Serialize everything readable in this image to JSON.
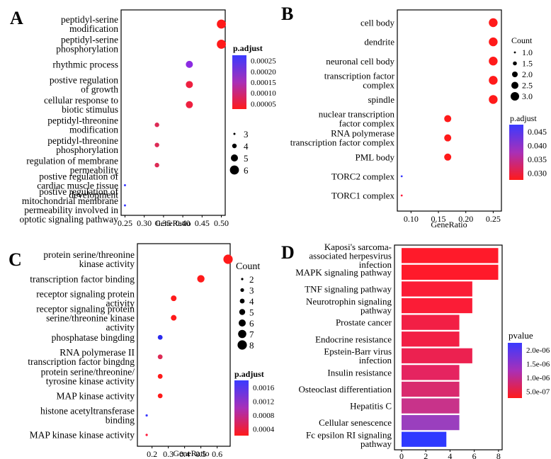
{
  "chart_data": [
    {
      "panel": "A",
      "type": "scatter",
      "xlabel": "GeneRatio",
      "xticks": [
        0.25,
        0.3,
        0.35,
        0.4,
        0.45,
        0.5
      ],
      "xtick_labels": [
        "0.25",
        "0.30",
        "0.35",
        "0.40",
        "0.45",
        "0.50"
      ],
      "xlim": [
        0.24,
        0.51
      ],
      "categories": [
        [
          "peptidyl-serine",
          "modification"
        ],
        [
          "peptidyl-serine",
          "phosphorylation"
        ],
        [
          "rhythmic process"
        ],
        [
          "postive regulation",
          "of growth"
        ],
        [
          "cellular response to",
          "biotic stimulus"
        ],
        [
          "peptidyl-threonine",
          "modification"
        ],
        [
          "peptidyl-threonine",
          "phosphorylation"
        ],
        [
          "regulation of membrane",
          "permeability"
        ],
        [
          "postive regulation of",
          "cardiac muscle tissue",
          "development"
        ],
        [
          "postive regulation of",
          "mitochondrial membrane",
          "permeability involved in",
          "optotic signaling pathway"
        ]
      ],
      "x": [
        0.5,
        0.5,
        0.417,
        0.417,
        0.417,
        0.333,
        0.333,
        0.333,
        0.25,
        0.25
      ],
      "size": [
        6,
        6,
        5,
        5,
        5,
        4,
        4,
        4,
        3,
        3
      ],
      "color": [
        "#ff1a1a",
        "#ff1a1a",
        "#8b2be2",
        "#ee2040",
        "#ee2040",
        "#dd2a55",
        "#dd2a55",
        "#dd2a55",
        "#3838ff",
        "#3838ff"
      ],
      "size_legend": {
        "values": [
          "3",
          "4",
          "5",
          "6"
        ]
      },
      "color_legend": {
        "title": "p.adjust",
        "ticks": [
          "0.00025",
          "0.00020",
          "0.00015",
          "0.00010",
          "0.00005"
        ],
        "gradient": [
          "#3a3aff",
          "#ff1a1a"
        ]
      }
    },
    {
      "panel": "B",
      "type": "scatter",
      "xlabel": "GeneRatio",
      "xticks": [
        0.1,
        0.15,
        0.2,
        0.25
      ],
      "xtick_labels": [
        "0.10",
        "0.15",
        "0.20",
        "0.25"
      ],
      "xlim": [
        0.075,
        0.265
      ],
      "categories": [
        [
          "cell body"
        ],
        [
          "dendrite"
        ],
        [
          "neuronal cell body"
        ],
        [
          "transcription factor",
          "complex"
        ],
        [
          "spindle"
        ],
        [
          "nuclear transcription",
          "factor complex"
        ],
        [
          "RNA polymerase",
          "transcription factor complex"
        ],
        [
          "PML body"
        ],
        [
          "TORC2 complex"
        ],
        [
          "TORC1 complex"
        ]
      ],
      "x": [
        0.25,
        0.25,
        0.25,
        0.25,
        0.25,
        0.167,
        0.167,
        0.167,
        0.083,
        0.083
      ],
      "size": [
        3,
        3,
        3,
        3,
        3,
        2,
        2,
        2,
        1,
        1
      ],
      "color": [
        "#ff1a1a",
        "#ff1a1a",
        "#ff1a1a",
        "#ff1a1a",
        "#ff1a1a",
        "#ff1a1a",
        "#ff1a1a",
        "#ff1a1a",
        "#3838ff",
        "#ff1a3a"
      ],
      "size_legend": {
        "title": "Count",
        "values": [
          "1.0",
          "1.5",
          "2.0",
          "2.5",
          "3.0"
        ]
      },
      "color_legend": {
        "title": "p.adjust",
        "ticks": [
          "0.045",
          "0.040",
          "0.035",
          "0.030"
        ],
        "gradient": [
          "#3a3aff",
          "#ff1a1a"
        ]
      }
    },
    {
      "panel": "C",
      "type": "scatter",
      "xlabel": "GeneRatio",
      "xticks": [
        0.2,
        0.3,
        0.4,
        0.5,
        0.6
      ],
      "xtick_labels": [
        "0.2",
        "0.3",
        "0.4",
        "0.5",
        "0.6"
      ],
      "xlim": [
        0.11,
        0.68
      ],
      "categories": [
        [
          "protein serine/threonine",
          "kinase activity"
        ],
        [
          "transcription factor binding"
        ],
        [
          "receptor signaling protein",
          "activity"
        ],
        [
          "receptor signaling protein",
          "serine/threonine kinase",
          "activity"
        ],
        [
          "phosphatase bingding"
        ],
        [
          "RNA polymerase II",
          "transcription factor bingdng"
        ],
        [
          "protein serine/threonine/",
          "tyrosine kinase activity"
        ],
        [
          "MAP kinase activity"
        ],
        [
          "histone acetyltransferase",
          "binding"
        ],
        [
          "MAP kinase kinase activity"
        ]
      ],
      "x": [
        0.667,
        0.5,
        0.333,
        0.333,
        0.25,
        0.25,
        0.25,
        0.25,
        0.167,
        0.167
      ],
      "size": [
        8,
        6,
        4,
        4,
        3,
        3,
        3,
        3,
        2,
        2
      ],
      "color": [
        "#ff1a1a",
        "#ff1a1a",
        "#ff1a1a",
        "#ff1a1a",
        "#2a2aee",
        "#dd2a55",
        "#ff1a1a",
        "#ff1a1a",
        "#3838ff",
        "#ff1a3a"
      ],
      "size_legend": {
        "title": "Count",
        "values": [
          "2",
          "3",
          "4",
          "5",
          "6",
          "7",
          "8"
        ]
      },
      "color_legend": {
        "title": "p.adjust",
        "ticks": [
          "0.0016",
          "0.0012",
          "0.0008",
          "0.0004"
        ],
        "gradient": [
          "#3a3aff",
          "#ff1a1a"
        ]
      }
    },
    {
      "panel": "D",
      "type": "bar",
      "orientation": "horizontal",
      "xticks": [
        0,
        2,
        4,
        6,
        8
      ],
      "xtick_labels": [
        "0",
        "2",
        "4",
        "6",
        "8"
      ],
      "xlim": [
        0,
        8.3
      ],
      "categories": [
        [
          "Kaposi's sarcoma-",
          "associated herpesvirus",
          "infection"
        ],
        [
          "MAPK signaling pathway"
        ],
        [
          "TNF signaling pathway"
        ],
        [
          "Neurotrophin signaling",
          "pathway"
        ],
        [
          "Prostate cancer"
        ],
        [
          "Endocrine resistance"
        ],
        [
          "Epstein-Barr virus",
          "infection"
        ],
        [
          "Insulin resistance"
        ],
        [
          "Osteoclast differentiation"
        ],
        [
          "Hepatitis C"
        ],
        [
          "Cellular senescence"
        ],
        [
          "Fc epsilon RI signaling",
          "pathway"
        ]
      ],
      "values": [
        8,
        8,
        6,
        6,
        5,
        5,
        6,
        5,
        5,
        5,
        5,
        4
      ],
      "color": [
        "#ff1a2a",
        "#ff1a2a",
        "#fb1c36",
        "#fb1c36",
        "#f21f45",
        "#f21f45",
        "#ec2150",
        "#e52460",
        "#d92a6e",
        "#c8338a",
        "#9a3fbe",
        "#2f3aff"
      ],
      "color_legend": {
        "title": "pvalue",
        "ticks": [
          "2.0e-06",
          "1.5e-06",
          "1.0e-06",
          "5.0e-07"
        ],
        "gradient": [
          "#3a3aff",
          "#ff1a1a"
        ]
      }
    }
  ]
}
